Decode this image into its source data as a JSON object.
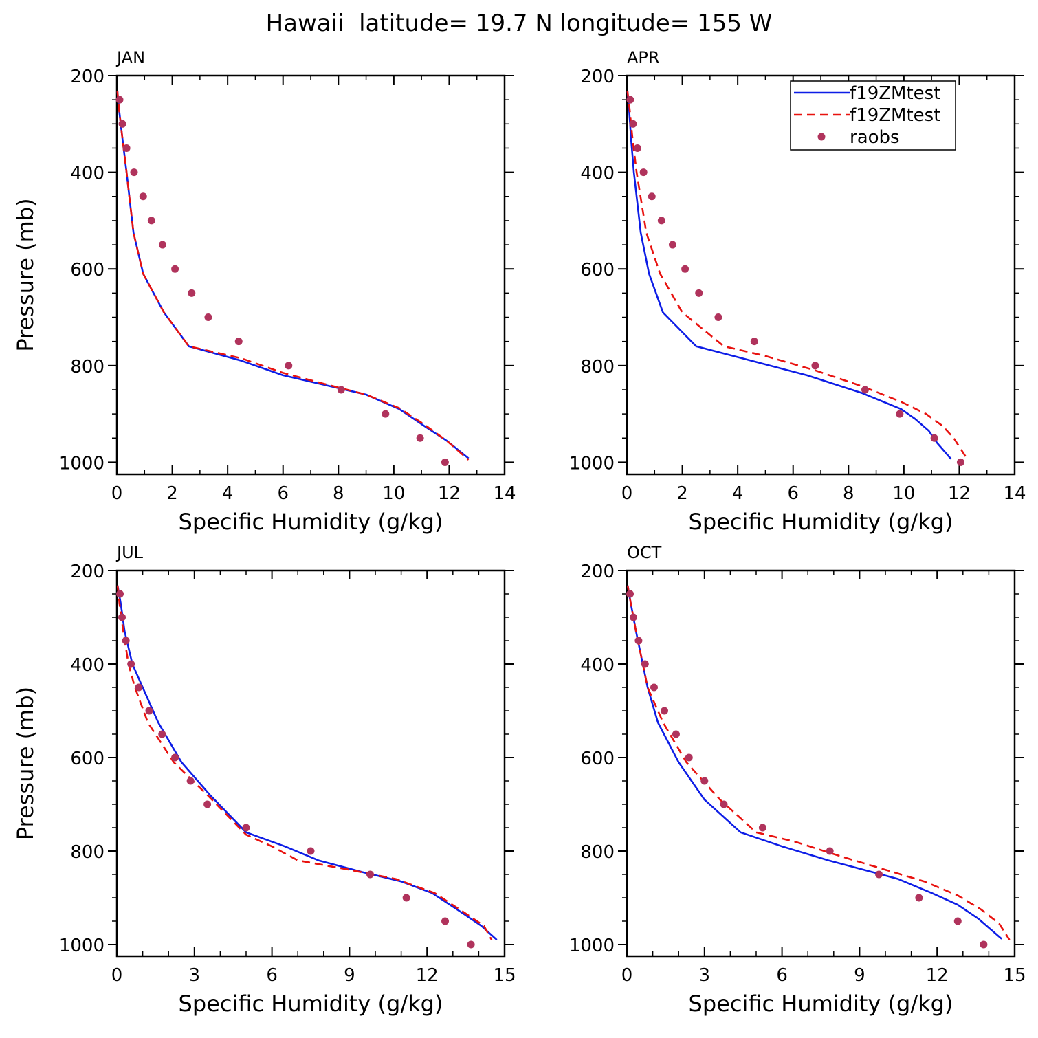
{
  "title": "Hawaii  latitude= 19.7 N longitude= 155 W",
  "colors": {
    "model1": "#0d1de6",
    "model2": "#e8120f",
    "obs": "#b0335c"
  },
  "legend": {
    "placement": "top-right of APR panel",
    "entries": [
      {
        "label": "f19ZMtest",
        "style": "solid",
        "color": "#0d1de6"
      },
      {
        "label": "f19ZMtest",
        "style": "dashed",
        "color": "#e8120f"
      },
      {
        "label": "raobs",
        "style": "dots",
        "color": "#b0335c"
      }
    ]
  },
  "chart_data": [
    {
      "type": "line",
      "panel": "JAN",
      "title": "JAN",
      "xlabel": "Specific Humidity (g/kg)",
      "ylabel": "Pressure (mb)",
      "xlim": [
        0,
        14
      ],
      "ylim": [
        200,
        1025
      ],
      "y_inverted": true,
      "xticks": [
        "0",
        "2",
        "4",
        "6",
        "8",
        "10",
        "12",
        "14"
      ],
      "yticks": [
        "200",
        "400",
        "600",
        "800",
        "1000"
      ],
      "series": [
        {
          "name": "f19ZMtest",
          "style": "solid",
          "x": [
            0.02,
            0.08,
            0.2,
            0.35,
            0.6,
            0.95,
            1.7,
            2.6,
            4.5,
            6,
            7.5,
            9,
            10.2,
            11.1,
            11.9,
            12.7
          ],
          "y": [
            232,
            270,
            330,
            400,
            525,
            610,
            690,
            760,
            790,
            820,
            840,
            860,
            890,
            925,
            955,
            992
          ]
        },
        {
          "name": "f19ZMtest",
          "style": "dashed",
          "x": [
            0.02,
            0.08,
            0.2,
            0.35,
            0.6,
            0.95,
            1.7,
            2.6,
            4.5,
            6,
            7.5,
            9,
            10.2,
            11.1,
            11.9,
            12.7
          ],
          "y": [
            232,
            270,
            330,
            400,
            525,
            610,
            690,
            760,
            785,
            815,
            838,
            860,
            888,
            922,
            955,
            995
          ]
        },
        {
          "name": "raobs",
          "style": "dots",
          "x": [
            0.1,
            0.2,
            0.35,
            0.62,
            0.95,
            1.25,
            1.65,
            2.1,
            2.7,
            3.3,
            4.4,
            6.2,
            8.1,
            9.7,
            10.95,
            11.85
          ],
          "y": [
            250,
            300,
            350,
            400,
            450,
            500,
            550,
            600,
            650,
            700,
            750,
            800,
            850,
            900,
            950,
            1000
          ]
        }
      ]
    },
    {
      "type": "line",
      "panel": "APR",
      "title": "APR",
      "xlabel": "Specific Humidity (g/kg)",
      "ylabel": "",
      "xlim": [
        0,
        14
      ],
      "ylim": [
        200,
        1025
      ],
      "y_inverted": true,
      "xticks": [
        "0",
        "2",
        "4",
        "6",
        "8",
        "10",
        "12",
        "14"
      ],
      "yticks": [
        "200",
        "400",
        "600",
        "800",
        "1000"
      ],
      "series": [
        {
          "name": "f19ZMtest",
          "style": "solid",
          "x": [
            0.02,
            0.08,
            0.15,
            0.25,
            0.5,
            0.8,
            1.3,
            2.5,
            4.5,
            6.5,
            8.5,
            9.9,
            10.4,
            10.9,
            11.2,
            11.7
          ],
          "y": [
            232,
            270,
            330,
            400,
            525,
            610,
            690,
            760,
            790,
            820,
            857,
            890,
            910,
            935,
            960,
            993
          ]
        },
        {
          "name": "f19ZMtest",
          "style": "dashed",
          "x": [
            0.02,
            0.1,
            0.2,
            0.35,
            0.7,
            1.2,
            2,
            3.5,
            5,
            6.8,
            8.5,
            9.9,
            10.8,
            11.4,
            11.8,
            12.25
          ],
          "y": [
            232,
            270,
            330,
            400,
            525,
            610,
            690,
            760,
            780,
            810,
            843,
            875,
            900,
            925,
            950,
            990
          ]
        },
        {
          "name": "raobs",
          "style": "dots",
          "x": [
            0.12,
            0.22,
            0.38,
            0.6,
            0.9,
            1.25,
            1.65,
            2.1,
            2.6,
            3.3,
            4.6,
            6.8,
            8.6,
            9.85,
            11.1,
            12.05
          ],
          "y": [
            250,
            300,
            350,
            400,
            450,
            500,
            550,
            600,
            650,
            700,
            750,
            800,
            850,
            900,
            950,
            1000
          ]
        }
      ]
    },
    {
      "type": "line",
      "panel": "JUL",
      "title": "JUL",
      "xlabel": "Specific Humidity (g/kg)",
      "ylabel": "Pressure (mb)",
      "xlim": [
        0,
        15
      ],
      "ylim": [
        200,
        1025
      ],
      "y_inverted": true,
      "xticks": [
        "0",
        "3",
        "6",
        "9",
        "12",
        "15"
      ],
      "yticks": [
        "200",
        "400",
        "600",
        "800",
        "1000"
      ],
      "series": [
        {
          "name": "f19ZMtest",
          "style": "solid",
          "x": [
            0.03,
            0.15,
            0.3,
            0.6,
            1,
            1.6,
            2.5,
            3.6,
            5,
            6.5,
            7.8,
            9.5,
            11,
            12.2,
            13.3,
            14.1,
            14.7
          ],
          "y": [
            232,
            270,
            330,
            400,
            450,
            525,
            610,
            680,
            760,
            790,
            820,
            845,
            865,
            890,
            930,
            960,
            990
          ]
        },
        {
          "name": "f19ZMtest",
          "style": "dashed",
          "x": [
            0.03,
            0.1,
            0.25,
            0.45,
            0.7,
            1.2,
            2.2,
            3.5,
            5,
            6,
            7,
            9,
            10.8,
            12.3,
            13.4,
            14.2,
            14.5
          ],
          "y": [
            232,
            270,
            330,
            400,
            450,
            525,
            610,
            680,
            765,
            790,
            820,
            840,
            860,
            890,
            930,
            960,
            990
          ]
        },
        {
          "name": "raobs",
          "style": "dots",
          "x": [
            0.12,
            0.2,
            0.35,
            0.55,
            0.85,
            1.25,
            1.75,
            2.25,
            2.85,
            3.5,
            5,
            7.5,
            9.8,
            11.2,
            12.7,
            13.7
          ],
          "y": [
            250,
            300,
            350,
            400,
            450,
            500,
            550,
            600,
            650,
            700,
            750,
            800,
            850,
            900,
            950,
            1000
          ]
        }
      ]
    },
    {
      "type": "line",
      "panel": "OCT",
      "title": "OCT",
      "xlabel": "Specific Humidity (g/kg)",
      "ylabel": "",
      "xlim": [
        0,
        15
      ],
      "ylim": [
        200,
        1025
      ],
      "y_inverted": true,
      "xticks": [
        "0",
        "3",
        "6",
        "9",
        "12",
        "15"
      ],
      "yticks": [
        "200",
        "400",
        "600",
        "800",
        "1000"
      ],
      "series": [
        {
          "name": "f19ZMtest",
          "style": "solid",
          "x": [
            0.03,
            0.15,
            0.35,
            0.8,
            1.2,
            2,
            3,
            4.4,
            6,
            7.8,
            9.5,
            10.5,
            11.8,
            12.8,
            13.6,
            14.5
          ],
          "y": [
            232,
            270,
            330,
            450,
            525,
            610,
            690,
            760,
            790,
            820,
            845,
            860,
            890,
            915,
            945,
            988
          ]
        },
        {
          "name": "f19ZMtest",
          "style": "dashed",
          "x": [
            0.03,
            0.15,
            0.35,
            0.8,
            1.4,
            2.3,
            3.6,
            5,
            6.5,
            8.2,
            10,
            11.5,
            12.8,
            13.7,
            14.4,
            14.8
          ],
          "y": [
            232,
            270,
            330,
            450,
            525,
            610,
            690,
            760,
            780,
            810,
            840,
            865,
            895,
            925,
            955,
            990
          ]
        },
        {
          "name": "raobs",
          "style": "dots",
          "x": [
            0.12,
            0.25,
            0.45,
            0.7,
            1.05,
            1.45,
            1.9,
            2.4,
            3,
            3.75,
            5.25,
            7.85,
            9.75,
            11.3,
            12.8,
            13.8
          ],
          "y": [
            250,
            300,
            350,
            400,
            450,
            500,
            550,
            600,
            650,
            700,
            750,
            800,
            850,
            900,
            950,
            1000
          ]
        }
      ]
    }
  ]
}
